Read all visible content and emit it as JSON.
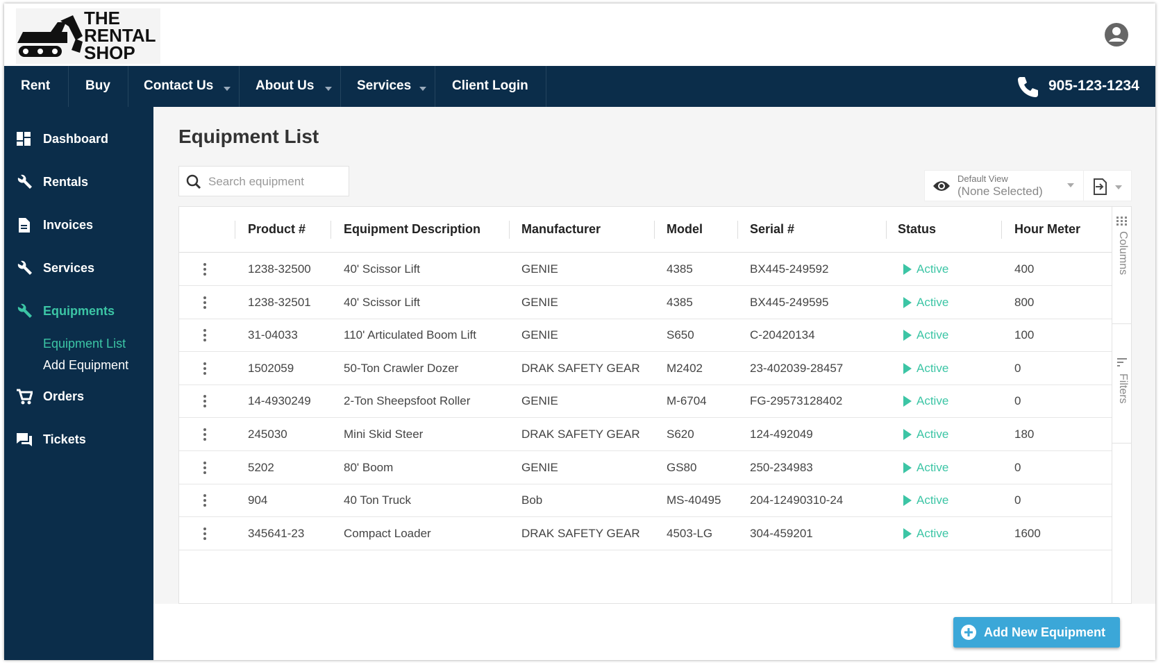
{
  "header": {
    "logo": [
      "THE",
      "RENTAL",
      "SHOP"
    ],
    "phone": "905-123-1234"
  },
  "nav": [
    {
      "label": "Rent",
      "dropdown": false
    },
    {
      "label": "Buy",
      "dropdown": false
    },
    {
      "label": "Contact Us",
      "dropdown": true
    },
    {
      "label": "About Us",
      "dropdown": true
    },
    {
      "label": "Services",
      "dropdown": true
    },
    {
      "label": "Client Login",
      "dropdown": false
    }
  ],
  "sidebar": [
    {
      "label": "Dashboard",
      "icon": "dashboard"
    },
    {
      "label": "Rentals",
      "icon": "wrench"
    },
    {
      "label": "Invoices",
      "icon": "doc"
    },
    {
      "label": "Services",
      "icon": "wrench"
    },
    {
      "label": "Equipments",
      "icon": "wrench",
      "active": true,
      "children": [
        {
          "label": "Equipment List",
          "active": true
        },
        {
          "label": "Add Equipment"
        }
      ]
    },
    {
      "label": "Orders",
      "icon": "cart"
    },
    {
      "label": "Tickets",
      "icon": "chat"
    }
  ],
  "page": {
    "title": "Equipment List",
    "search_placeholder": "Search equipment",
    "view_label": "Default View",
    "view_value": "(None Selected)",
    "button": "Add New Equipment"
  },
  "table": {
    "columns": [
      "Product #",
      "Equipment Description",
      "Manufacturer",
      "Model",
      "Serial #",
      "Status",
      "Hour Meter"
    ],
    "rows": [
      [
        "1238-32500",
        "40' Scissor Lift",
        "GENIE",
        "4385",
        "BX445-249592",
        "Active",
        "400"
      ],
      [
        "1238-32501",
        "40' Scissor Lift",
        "GENIE",
        "4385",
        "BX445-249595",
        "Active",
        "800"
      ],
      [
        "31-04033",
        "110' Articulated Boom Lift",
        "GENIE",
        "S650",
        "C-20420134",
        "Active",
        "100"
      ],
      [
        "1502059",
        "50-Ton Crawler Dozer",
        "DRAK SAFETY GEAR",
        "M2402",
        "23-402039-28457",
        "Active",
        "0"
      ],
      [
        "14-4930249",
        "2-Ton Sheepsfoot Roller",
        "GENIE",
        "M-6704",
        "FG-29573128402",
        "Active",
        "0"
      ],
      [
        "245030",
        "Mini Skid Steer",
        "DRAK SAFETY GEAR",
        "S620",
        "124-492049",
        "Active",
        "180"
      ],
      [
        "5202",
        "80' Boom",
        "GENIE",
        "GS80",
        "250-234983",
        "Active",
        "0"
      ],
      [
        "904",
        "40 Ton Truck",
        "Bob",
        "MS-40495",
        "204-12490310-24",
        "Active",
        "0"
      ],
      [
        "345641-23",
        "Compact Loader",
        "DRAK SAFETY GEAR",
        "4503-LG",
        "304-459201",
        "Active",
        "1600"
      ]
    ],
    "side_tabs": [
      "Columns",
      "Filters"
    ]
  }
}
